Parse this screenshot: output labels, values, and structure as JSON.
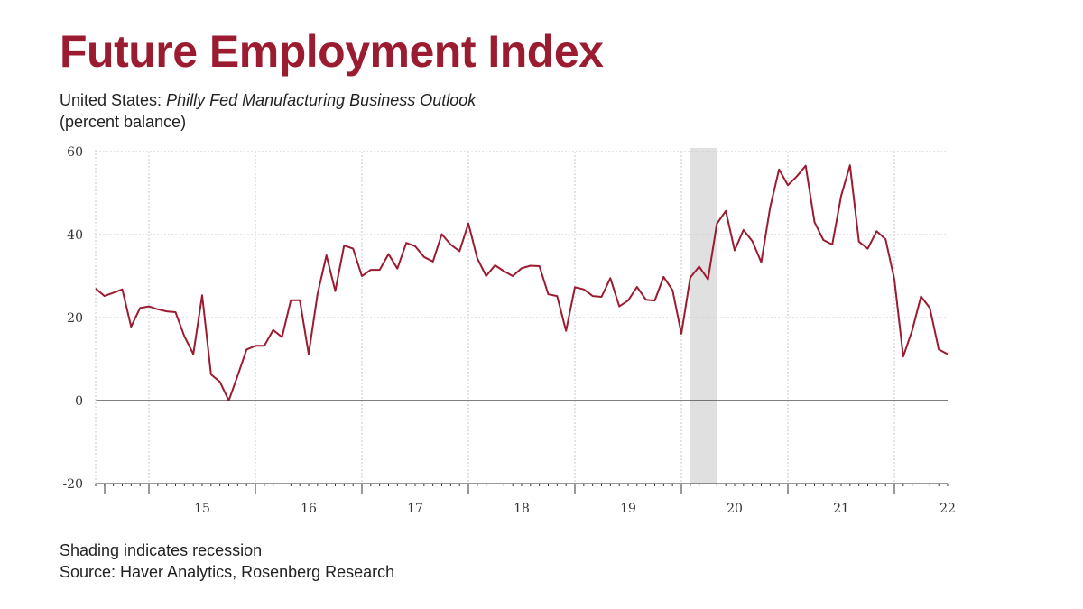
{
  "colors": {
    "accent": "#9b1b30",
    "recession": "#e0e0e0",
    "grid": "#c8c8c8",
    "axis": "#333333"
  },
  "header": {
    "title": "Future Employment Index",
    "subtitle_prefix": "United States: ",
    "subtitle_italic": "Philly Fed Manufacturing Business Outlook",
    "subtitle_line2": "(percent balance)"
  },
  "footer": {
    "note": "Shading indicates recession",
    "source": "Source: Haver Analytics, Rosenberg Research"
  },
  "chart_data": {
    "type": "line",
    "title": "Future Employment Index",
    "ylim": [
      -20,
      60
    ],
    "y_ticks": [
      60,
      40,
      20,
      0,
      -20
    ],
    "x_ticks": [
      "15",
      "16",
      "17",
      "18",
      "19",
      "20",
      "21",
      "22"
    ],
    "xlim": [
      "2014-07",
      "2022-07"
    ],
    "grid": true,
    "recessions": [
      {
        "start": "2020-02",
        "end": "2020-04"
      }
    ],
    "series": [
      {
        "start": "2014-07",
        "frequency": "monthly",
        "values": [
          27.0,
          25.2,
          26.0,
          26.8,
          17.8,
          22.3,
          22.7,
          22.0,
          21.5,
          21.3,
          15.5,
          11.2,
          25.4,
          6.3,
          4.5,
          0.0,
          6.0,
          12.3,
          13.2,
          13.2,
          17.0,
          15.3,
          24.2,
          24.2,
          11.2,
          25.6,
          35.0,
          26.4,
          37.4,
          36.6,
          30.0,
          31.5,
          31.5,
          35.3,
          31.8,
          38.0,
          37.2,
          34.6,
          33.5,
          40.1,
          37.6,
          36.0,
          42.7,
          34.3,
          30.0,
          32.6,
          31.2,
          30.0,
          31.9,
          32.5,
          32.4,
          25.6,
          25.2,
          16.8,
          27.3,
          26.8,
          25.2,
          25.0,
          29.5,
          22.7,
          24.1,
          27.4,
          24.3,
          24.1,
          29.8,
          26.6,
          16.1,
          29.6,
          32.3,
          29.2,
          42.6,
          45.7,
          36.2,
          41.1,
          38.4,
          33.3,
          46.5,
          55.7,
          51.9,
          54.0,
          56.6,
          43.0,
          38.7,
          37.6,
          49.3,
          56.7,
          38.3,
          36.6,
          40.8,
          38.9,
          29.2,
          10.6,
          16.9,
          25.1,
          22.3,
          12.3,
          11.2
        ]
      }
    ]
  }
}
